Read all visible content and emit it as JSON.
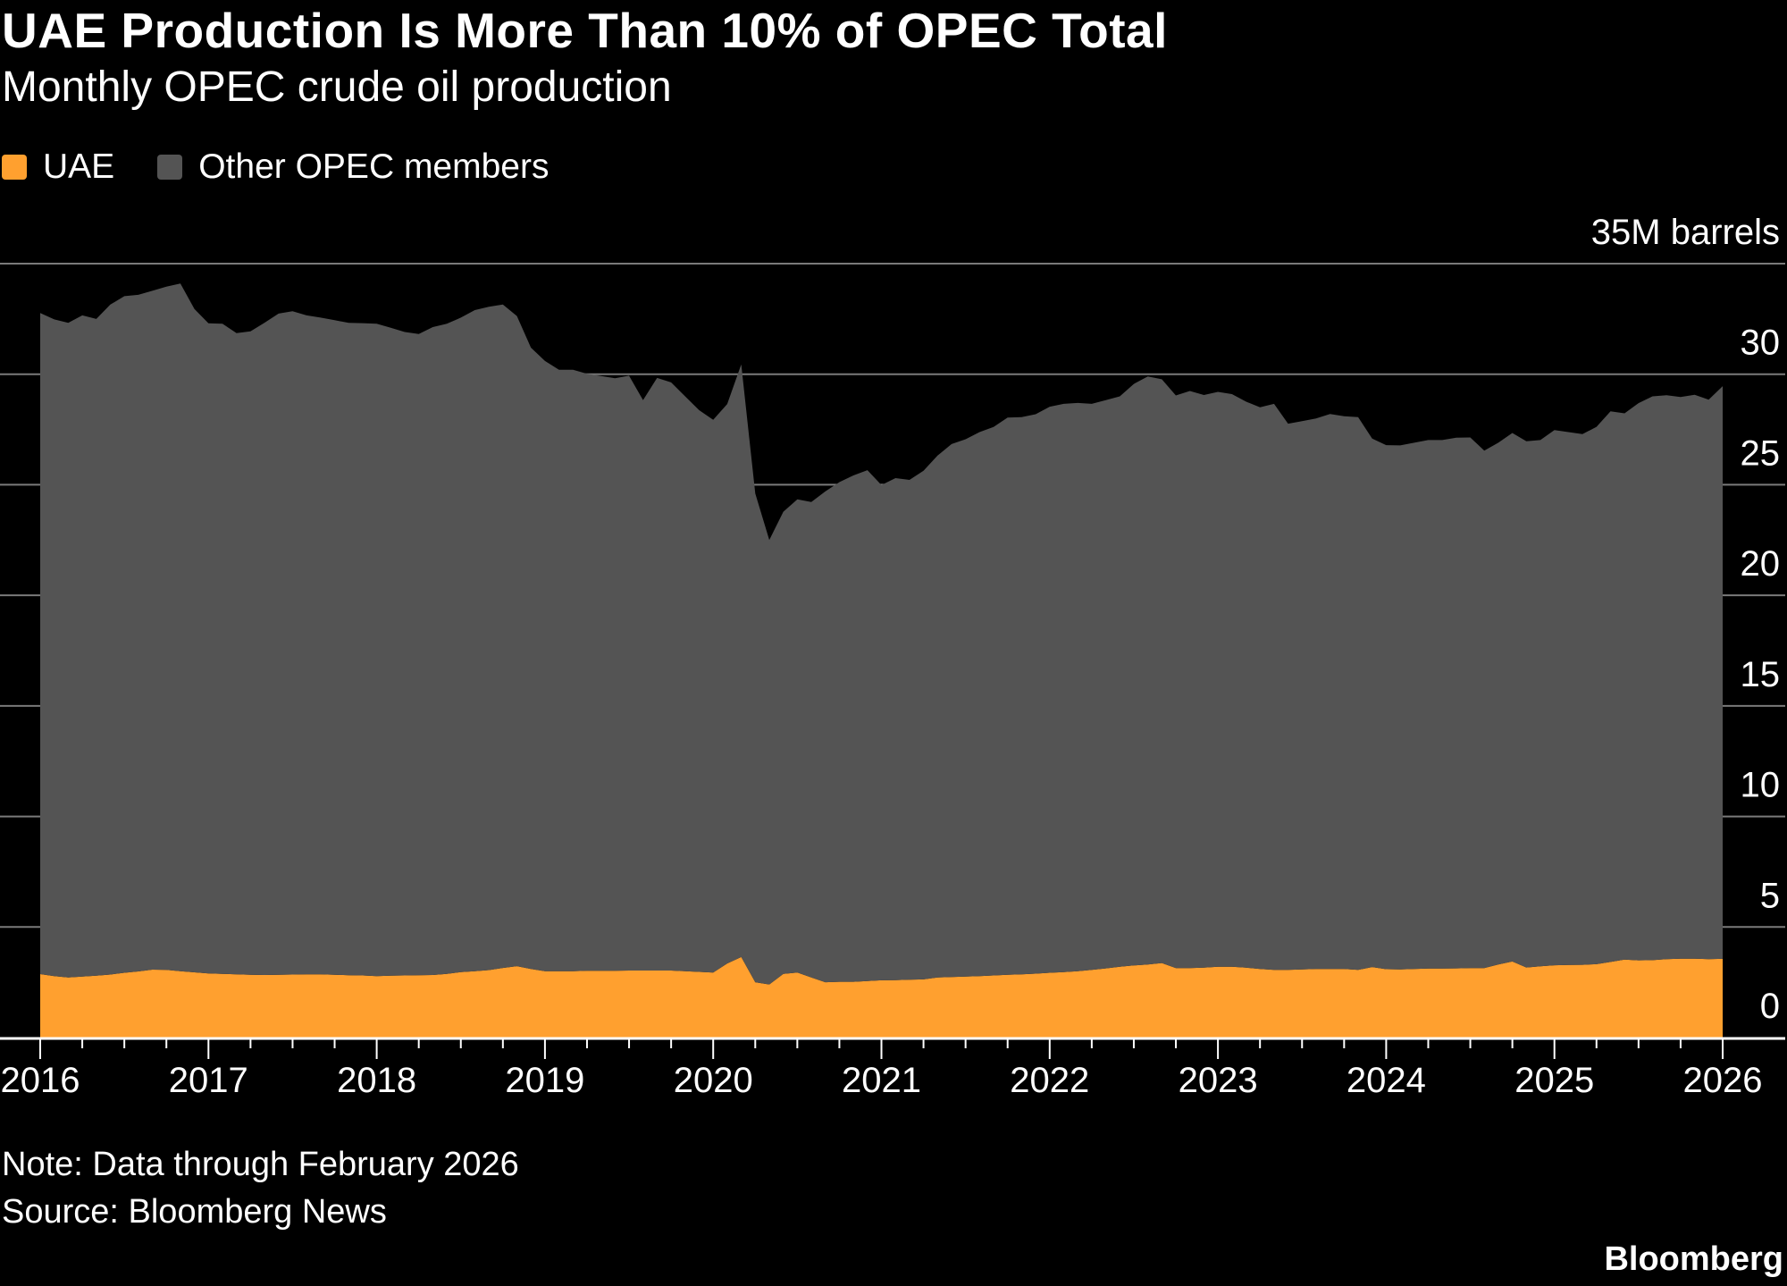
{
  "title": "UAE Production Is More Than 10% of OPEC Total",
  "subtitle": "Monthly OPEC crude oil production",
  "note": "Note: Data through February 2026",
  "source": "Source: Bloomberg News",
  "brand": "Bloomberg",
  "chart_data": {
    "type": "area",
    "stacked": true,
    "title": "UAE Production Is More Than 10% of OPEC Total",
    "subtitle": "Monthly OPEC crude oil production",
    "ylabel": "35M barrels",
    "ylim": [
      0,
      35
    ],
    "y_ticks": [
      "0",
      "5",
      "10",
      "15",
      "20",
      "25",
      "30",
      "35M barrels"
    ],
    "y_tick_values": [
      0,
      5,
      10,
      15,
      20,
      25,
      30,
      35
    ],
    "y_axis_side": "right",
    "x_ticks": [
      "2016",
      "2017",
      "2018",
      "2019",
      "2020",
      "2021",
      "2022",
      "2023",
      "2024",
      "2025",
      "2026"
    ],
    "x_start": "2016-01",
    "frequency": "monthly",
    "grid": true,
    "legend_placement": "top-left",
    "series": [
      {
        "name": "UAE",
        "color": "#FFA02F",
        "values": [
          2.87,
          2.78,
          2.72,
          2.76,
          2.8,
          2.85,
          2.93,
          2.99,
          3.07,
          3.06,
          3.0,
          2.95,
          2.9,
          2.88,
          2.86,
          2.84,
          2.83,
          2.84,
          2.85,
          2.86,
          2.86,
          2.84,
          2.82,
          2.81,
          2.78,
          2.8,
          2.81,
          2.82,
          2.83,
          2.88,
          2.96,
          3.0,
          3.05,
          3.15,
          3.23,
          3.1,
          3.0,
          3.0,
          3.0,
          3.02,
          3.02,
          3.02,
          3.03,
          3.03,
          3.03,
          3.03,
          3.0,
          2.97,
          2.94,
          3.35,
          3.64,
          2.5,
          2.4,
          2.88,
          2.94,
          2.72,
          2.5,
          2.52,
          2.52,
          2.56,
          2.59,
          2.6,
          2.62,
          2.63,
          2.72,
          2.74,
          2.76,
          2.78,
          2.81,
          2.84,
          2.86,
          2.89,
          2.93,
          2.96,
          3.0,
          3.06,
          3.13,
          3.2,
          3.26,
          3.3,
          3.37,
          3.14,
          3.14,
          3.16,
          3.2,
          3.2,
          3.16,
          3.1,
          3.06,
          3.06,
          3.08,
          3.1,
          3.1,
          3.1,
          3.06,
          3.19,
          3.09,
          3.08,
          3.1,
          3.12,
          3.12,
          3.13,
          3.14,
          3.14,
          3.3,
          3.44,
          3.17,
          3.22,
          3.27,
          3.28,
          3.29,
          3.32,
          3.42,
          3.53,
          3.49,
          3.5,
          3.55,
          3.57,
          3.57,
          3.55,
          3.56
        ]
      },
      {
        "name": "Other OPEC members",
        "color": "#545454",
        "values": [
          29.9,
          29.7,
          29.6,
          29.9,
          29.7,
          30.3,
          30.6,
          30.6,
          30.7,
          30.9,
          31.1,
          30.0,
          29.4,
          29.4,
          29.0,
          29.1,
          29.5,
          29.9,
          30.0,
          29.8,
          29.7,
          29.6,
          29.5,
          29.5,
          29.5,
          29.3,
          29.1,
          29.0,
          29.3,
          29.4,
          29.6,
          29.9,
          30.0,
          30.0,
          29.4,
          28.1,
          27.6,
          27.2,
          27.2,
          27.0,
          26.9,
          26.8,
          26.9,
          25.8,
          26.8,
          26.6,
          26.0,
          25.4,
          25.0,
          25.3,
          26.8,
          22.1,
          20.1,
          20.9,
          21.4,
          21.5,
          22.2,
          22.6,
          22.9,
          23.1,
          22.4,
          22.7,
          22.6,
          23.0,
          23.6,
          24.1,
          24.3,
          24.6,
          24.8,
          25.2,
          25.2,
          25.3,
          25.6,
          25.7,
          25.7,
          25.6,
          25.7,
          25.8,
          26.3,
          26.6,
          26.4,
          25.9,
          26.1,
          25.9,
          26.0,
          25.9,
          25.6,
          25.4,
          25.6,
          24.7,
          24.8,
          24.9,
          25.1,
          25.0,
          25.0,
          23.9,
          23.7,
          23.7,
          23.8,
          23.9,
          23.9,
          24.0,
          24.0,
          23.4,
          23.6,
          23.9,
          23.8,
          23.8,
          24.2,
          24.1,
          24.0,
          24.3,
          24.9,
          24.7,
          25.2,
          25.5,
          25.5,
          25.4,
          25.5,
          25.3,
          25.9
        ]
      }
    ]
  }
}
